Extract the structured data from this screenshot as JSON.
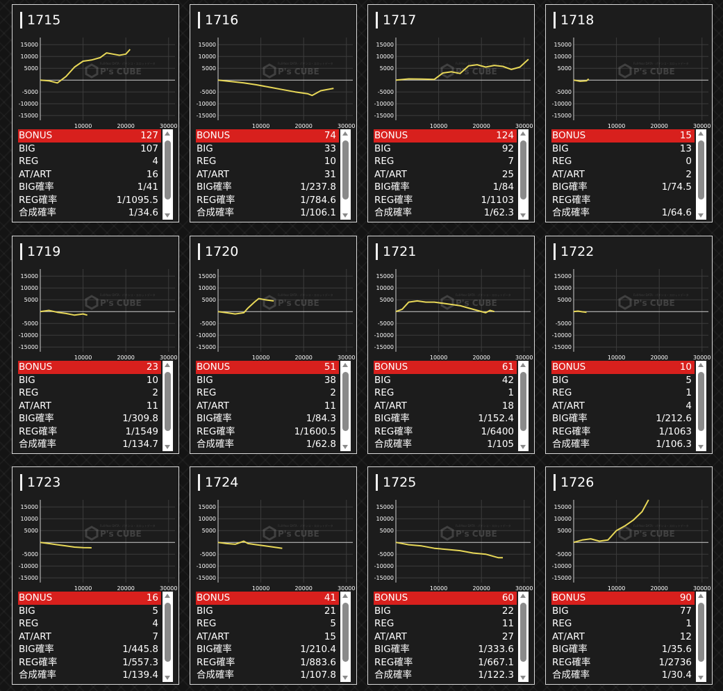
{
  "chart_axes": {
    "y_ticks": [
      15000,
      10000,
      5000,
      0,
      -5000,
      -10000,
      -15000
    ],
    "y_tick_labels": [
      "15000",
      "10000",
      "5000",
      "",
      "-5000",
      "-10000",
      "-15000"
    ],
    "x_ticks": [
      10000,
      20000,
      30000
    ],
    "x_tick_labels": [
      "10000",
      "20000",
      "30000"
    ],
    "ylim": [
      -17000,
      18000
    ],
    "xlim": [
      0,
      31500
    ]
  },
  "watermark": {
    "text": "P's CUBE",
    "sub": "Full-Year DATA  ·  パチンコ・スロットデータ"
  },
  "colors": {
    "line": "#e8d858",
    "bonus_bg": "#d8201d",
    "card_bg": "#1c1c1c"
  },
  "stat_labels": [
    "BONUS",
    "BIG",
    "REG",
    "AT/ART",
    "BIG確率",
    "REG確率",
    "合成確率"
  ],
  "machines": [
    {
      "id": "1715",
      "stats": [
        "127",
        "107",
        "4",
        "16",
        "1/41",
        "1/1095.5",
        "1/34.6"
      ]
    },
    {
      "id": "1716",
      "stats": [
        "74",
        "33",
        "10",
        "31",
        "1/237.8",
        "1/784.6",
        "1/106.1"
      ]
    },
    {
      "id": "1717",
      "stats": [
        "124",
        "92",
        "7",
        "25",
        "1/84",
        "1/1103",
        "1/62.3"
      ]
    },
    {
      "id": "1718",
      "stats": [
        "15",
        "13",
        "0",
        "2",
        "1/74.5",
        "",
        "1/64.6"
      ]
    },
    {
      "id": "1719",
      "stats": [
        "23",
        "10",
        "2",
        "11",
        "1/309.8",
        "1/1549",
        "1/134.7"
      ]
    },
    {
      "id": "1720",
      "stats": [
        "51",
        "38",
        "2",
        "11",
        "1/84.3",
        "1/1600.5",
        "1/62.8"
      ]
    },
    {
      "id": "1721",
      "stats": [
        "61",
        "42",
        "1",
        "18",
        "1/152.4",
        "1/6400",
        "1/105"
      ]
    },
    {
      "id": "1722",
      "stats": [
        "10",
        "5",
        "1",
        "4",
        "1/212.6",
        "1/1063",
        "1/106.3"
      ]
    },
    {
      "id": "1723",
      "stats": [
        "16",
        "5",
        "4",
        "7",
        "1/445.8",
        "1/557.3",
        "1/139.4"
      ]
    },
    {
      "id": "1724",
      "stats": [
        "41",
        "21",
        "5",
        "15",
        "1/210.4",
        "1/883.6",
        "1/107.8"
      ]
    },
    {
      "id": "1725",
      "stats": [
        "60",
        "22",
        "11",
        "27",
        "1/333.6",
        "1/667.1",
        "1/122.3"
      ]
    },
    {
      "id": "1726",
      "stats": [
        "90",
        "77",
        "1",
        "12",
        "1/35.6",
        "1/2736",
        "1/30.4"
      ]
    }
  ],
  "chart_data": [
    {
      "type": "line",
      "series": [
        {
          "values": [
            [
              0,
              0
            ],
            [
              2000,
              -300
            ],
            [
              4000,
              -1200
            ],
            [
              6000,
              1500
            ],
            [
              8000,
              5500
            ],
            [
              10000,
              8000
            ],
            [
              12000,
              8500
            ],
            [
              14000,
              9500
            ],
            [
              15500,
              11500
            ],
            [
              17000,
              11000
            ],
            [
              18500,
              10500
            ],
            [
              20000,
              11000
            ],
            [
              21000,
              13000
            ]
          ]
        }
      ]
    },
    {
      "type": "line",
      "series": [
        {
          "values": [
            [
              0,
              0
            ],
            [
              3000,
              -600
            ],
            [
              6000,
              -1200
            ],
            [
              9000,
              -2000
            ],
            [
              12000,
              -3000
            ],
            [
              15000,
              -4000
            ],
            [
              18000,
              -5000
            ],
            [
              21000,
              -5800
            ],
            [
              22000,
              -6500
            ],
            [
              24000,
              -4500
            ],
            [
              27000,
              -3500
            ]
          ]
        }
      ]
    },
    {
      "type": "line",
      "series": [
        {
          "values": [
            [
              0,
              0
            ],
            [
              3000,
              500
            ],
            [
              6000,
              400
            ],
            [
              9000,
              300
            ],
            [
              11000,
              3000
            ],
            [
              13000,
              3500
            ],
            [
              15000,
              2800
            ],
            [
              17000,
              6000
            ],
            [
              19000,
              6500
            ],
            [
              21000,
              5500
            ],
            [
              23000,
              6200
            ],
            [
              25000,
              5800
            ],
            [
              27000,
              4500
            ],
            [
              29000,
              5500
            ],
            [
              31000,
              8800
            ]
          ]
        }
      ]
    },
    {
      "type": "line",
      "series": [
        {
          "values": [
            [
              0,
              0
            ],
            [
              1500,
              -500
            ],
            [
              3000,
              -300
            ],
            [
              3500,
              500
            ]
          ]
        }
      ]
    },
    {
      "type": "line",
      "series": [
        {
          "values": [
            [
              0,
              0
            ],
            [
              2000,
              500
            ],
            [
              4000,
              -300
            ],
            [
              6000,
              -800
            ],
            [
              8000,
              -1500
            ],
            [
              10000,
              -1000
            ],
            [
              11000,
              -1500
            ]
          ]
        }
      ]
    },
    {
      "type": "line",
      "series": [
        {
          "values": [
            [
              0,
              0
            ],
            [
              2000,
              -500
            ],
            [
              4000,
              -1000
            ],
            [
              6000,
              -500
            ],
            [
              7000,
              1500
            ],
            [
              8500,
              4000
            ],
            [
              9500,
              5500
            ],
            [
              11000,
              5000
            ],
            [
              13000,
              4500
            ]
          ]
        }
      ]
    },
    {
      "type": "line",
      "series": [
        {
          "values": [
            [
              0,
              0
            ],
            [
              1500,
              1000
            ],
            [
              3000,
              4000
            ],
            [
              5000,
              4500
            ],
            [
              7000,
              4000
            ],
            [
              9000,
              4000
            ],
            [
              11000,
              3500
            ],
            [
              13000,
              3000
            ],
            [
              15000,
              2500
            ],
            [
              17000,
              1500
            ],
            [
              19000,
              500
            ],
            [
              21000,
              -500
            ],
            [
              22000,
              500
            ],
            [
              23000,
              0
            ]
          ]
        }
      ]
    },
    {
      "type": "line",
      "series": [
        {
          "values": [
            [
              0,
              0
            ],
            [
              1000,
              200
            ],
            [
              2000,
              -100
            ],
            [
              3000,
              -300
            ]
          ]
        }
      ]
    },
    {
      "type": "line",
      "series": [
        {
          "values": [
            [
              0,
              0
            ],
            [
              2000,
              -500
            ],
            [
              4000,
              -1000
            ],
            [
              6000,
              -1500
            ],
            [
              8000,
              -2000
            ],
            [
              10000,
              -2200
            ],
            [
              12000,
              -2300
            ]
          ]
        }
      ]
    },
    {
      "type": "line",
      "series": [
        {
          "values": [
            [
              0,
              0
            ],
            [
              2000,
              -500
            ],
            [
              4000,
              -800
            ],
            [
              6000,
              500
            ],
            [
              7000,
              -500
            ],
            [
              9000,
              -1000
            ],
            [
              11000,
              -1500
            ],
            [
              13000,
              -2000
            ],
            [
              15000,
              -2500
            ]
          ]
        }
      ]
    },
    {
      "type": "line",
      "series": [
        {
          "values": [
            [
              0,
              0
            ],
            [
              3000,
              -1000
            ],
            [
              6000,
              -1500
            ],
            [
              9000,
              -2500
            ],
            [
              12000,
              -3000
            ],
            [
              15000,
              -3500
            ],
            [
              18000,
              -4500
            ],
            [
              21000,
              -5000
            ],
            [
              24000,
              -6500
            ],
            [
              25000,
              -6500
            ]
          ]
        }
      ]
    },
    {
      "type": "line",
      "series": [
        {
          "values": [
            [
              0,
              0
            ],
            [
              2000,
              1000
            ],
            [
              4000,
              1500
            ],
            [
              6000,
              500
            ],
            [
              8000,
              1000
            ],
            [
              10000,
              5000
            ],
            [
              12000,
              7000
            ],
            [
              14000,
              9500
            ],
            [
              16000,
              13000
            ],
            [
              17500,
              18000
            ]
          ]
        }
      ]
    }
  ]
}
